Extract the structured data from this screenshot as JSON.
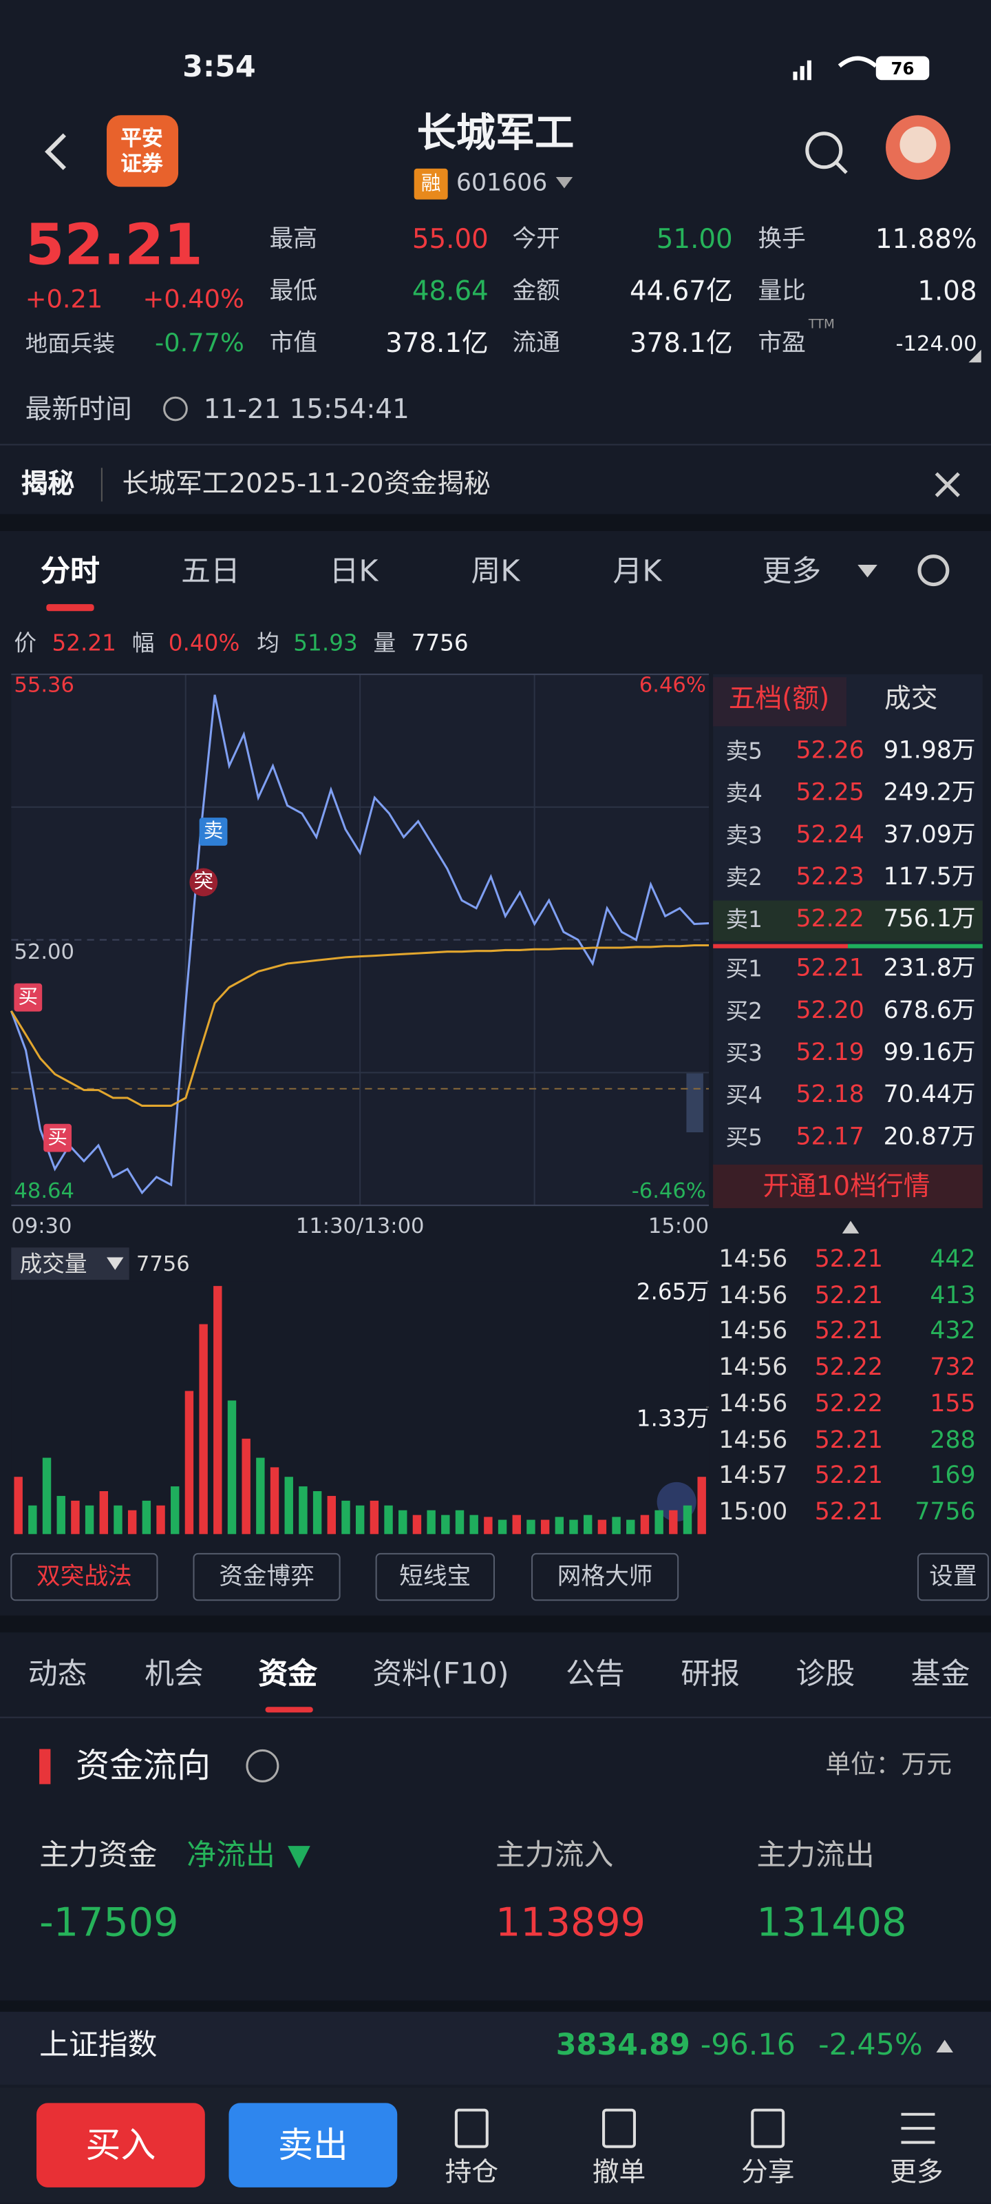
{
  "status_bar": {
    "time": "3:54",
    "battery": "76"
  },
  "header": {
    "broker_logo": [
      "平安",
      "证券"
    ],
    "title": "长城军工",
    "badge": "融",
    "code": "601606"
  },
  "quote": {
    "price": "52.21",
    "change": "+0.21",
    "change_pct": "+0.40%",
    "sector": "地面兵装",
    "sector_pct": "-0.77%",
    "stats": [
      [
        "最高",
        "55.00"
      ],
      [
        "今开",
        "51.00"
      ],
      [
        "换手",
        "11.88%"
      ],
      [
        "最低",
        "48.64"
      ],
      [
        "金额",
        "44.67亿"
      ],
      [
        "量比",
        "1.08"
      ],
      [
        "市值",
        "378.1亿"
      ],
      [
        "流通",
        "378.1亿"
      ],
      [
        "市盈",
        "-124.00"
      ]
    ],
    "ttm": "TTM",
    "time_label": "最新时间",
    "time": "11-21 15:54:41"
  },
  "banner": {
    "tag": "揭秘",
    "text": "长城军工2025-11-20资金揭秘"
  },
  "chart_tabs": [
    "分时",
    "五日",
    "日K",
    "周K",
    "月K",
    "更多"
  ],
  "info_line": [
    [
      "价",
      "52.21"
    ],
    [
      "幅",
      "0.40%"
    ],
    [
      "均",
      "51.93"
    ],
    [
      "量",
      "7756"
    ]
  ],
  "intraday": {
    "type": "line",
    "ylim": [
      48.64,
      55.36
    ],
    "yticks": [
      55.36,
      {
        "value": 52,
        "label": "52.00"
      },
      48.64
    ],
    "y2lim": [
      -6.46,
      6.46
    ],
    "y2ticks": [
      {
        "value": 6.46,
        "label": "6.46%"
      },
      {
        "value": -6.46,
        "label": "-6.46%"
      }
    ],
    "xticks": [
      "09:30",
      "11:30/13:00",
      "15:00"
    ],
    "series": [
      {
        "color": "#7f9ff2",
        "values": [
          51.1,
          50.6,
          49.6,
          49.1,
          49.4,
          49.2,
          49.4,
          49.0,
          49.1,
          48.8,
          49.0,
          48.9,
          51.2,
          53.3,
          55.1,
          54.2,
          54.6,
          53.8,
          54.2,
          53.7,
          53.6,
          53.3,
          53.9,
          53.4,
          53.1,
          53.8,
          53.6,
          53.3,
          53.5,
          53.2,
          52.9,
          52.5,
          52.4,
          52.8,
          52.3,
          52.6,
          52.2,
          52.5,
          52.1,
          52.0,
          51.7,
          52.4,
          52.1,
          52.0,
          52.7,
          52.3,
          52.4,
          52.2,
          52.21
        ]
      },
      {
        "color": "#e2a62e",
        "values": [
          51.1,
          50.8,
          50.5,
          50.3,
          50.2,
          50.1,
          50.1,
          50.0,
          50.0,
          49.9,
          49.9,
          49.9,
          50.0,
          50.6,
          51.2,
          51.4,
          51.5,
          51.6,
          51.65,
          51.7,
          51.72,
          51.74,
          51.76,
          51.78,
          51.79,
          51.8,
          51.81,
          51.82,
          51.83,
          51.84,
          51.85,
          51.85,
          51.86,
          51.86,
          51.87,
          51.87,
          51.88,
          51.88,
          51.89,
          51.89,
          51.9,
          51.9,
          51.9,
          51.91,
          51.91,
          51.92,
          51.92,
          51.93,
          51.93
        ]
      }
    ],
    "annotations": [
      "买",
      "买",
      "卖",
      "突"
    ]
  },
  "order_book": {
    "tabs": [
      "五档(额)",
      "成交"
    ],
    "sell": [
      [
        "卖5",
        "52.26",
        "91.98万"
      ],
      [
        "卖4",
        "52.25",
        "249.2万"
      ],
      [
        "卖3",
        "52.24",
        "37.09万"
      ],
      [
        "卖2",
        "52.23",
        "117.5万"
      ],
      [
        "卖1",
        "52.22",
        "756.1万"
      ]
    ],
    "buy": [
      [
        "买1",
        "52.21",
        "231.8万"
      ],
      [
        "买2",
        "52.20",
        "678.6万"
      ],
      [
        "买3",
        "52.19",
        "99.16万"
      ],
      [
        "买4",
        "52.18",
        "70.44万"
      ],
      [
        "买5",
        "52.17",
        "20.87万"
      ]
    ],
    "upgrade": "开通10档行情"
  },
  "trades": [
    [
      "14:56",
      "52.21",
      "442"
    ],
    [
      "14:56",
      "52.21",
      "413"
    ],
    [
      "14:56",
      "52.21",
      "432"
    ],
    [
      "14:56",
      "52.22",
      "732"
    ],
    [
      "14:56",
      "52.22",
      "155"
    ],
    [
      "14:56",
      "52.21",
      "288"
    ],
    [
      "14:57",
      "52.21",
      "169"
    ],
    [
      "15:00",
      "52.21",
      "7756"
    ]
  ],
  "volume": {
    "type": "bar",
    "label": "成交量",
    "last": "7756",
    "ylim": [
      0,
      26500
    ],
    "yticks": [
      {
        "value": 26500,
        "label": "2.65万"
      },
      {
        "value": 13300,
        "label": "1.33万"
      }
    ],
    "up_color": "#e8353a",
    "down_color": "#1fae5d",
    "values": [
      6000,
      3000,
      8000,
      4000,
      3500,
      3000,
      4500,
      3000,
      2500,
      3500,
      3000,
      5000,
      15000,
      22000,
      26000,
      14000,
      10000,
      8000,
      7000,
      6000,
      5000,
      4500,
      4000,
      3500,
      3000,
      3500,
      3000,
      2500,
      2000,
      2500,
      2000,
      2500,
      2000,
      1800,
      1500,
      2000,
      1500,
      1500,
      1800,
      1500,
      2000,
      1500,
      1800,
      1500,
      2000,
      2500,
      2500,
      3000,
      6000
    ]
  },
  "tools": [
    "双突战法",
    "资金博弈",
    "短线宝",
    "网格大师",
    "设置"
  ],
  "section_tabs": [
    "动态",
    "机会",
    "资金",
    "资料(F10)",
    "公告",
    "研报",
    "诊股",
    "基金"
  ],
  "funds": {
    "title": "资金流向",
    "unit": "单位：万元",
    "main_label": "主力资金",
    "net_label": "净流出",
    "inflow_label": "主力流入",
    "outflow_label": "主力流出",
    "net": "-17509",
    "inflow": "113899",
    "outflow": "131408"
  },
  "index_bar": {
    "name": "上证指数",
    "value": "3834.89",
    "change": "-96.16",
    "change_pct": "-2.45%"
  },
  "bottom_bar": {
    "buy": "买入",
    "sell": "卖出",
    "items": [
      "持仓",
      "撤单",
      "分享",
      "更多"
    ]
  }
}
